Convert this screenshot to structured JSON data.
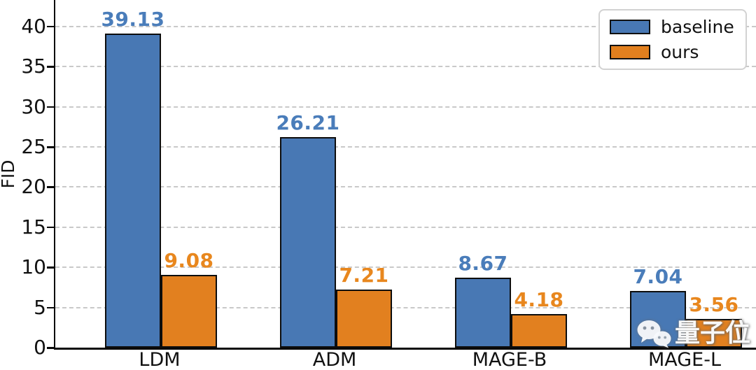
{
  "chart_data": {
    "type": "bar",
    "title": "",
    "categories": [
      "LDM",
      "ADM",
      "MAGE-B",
      "MAGE-L"
    ],
    "series": [
      {
        "name": "baseline",
        "color": "#4878b4",
        "label_color": "#4a7dba",
        "values": [
          39.13,
          26.21,
          8.67,
          7.04
        ]
      },
      {
        "name": "ours",
        "color": "#e2801f",
        "label_color": "#e8871e",
        "values": [
          9.08,
          7.21,
          4.18,
          3.56
        ]
      }
    ],
    "xlabel": "",
    "ylabel": "FID",
    "yticks": [
      0,
      5,
      10,
      15,
      20,
      25,
      30,
      35,
      40
    ],
    "ylim": [
      0,
      43.3
    ],
    "grid": "horizontal-dashed",
    "grid_color": "#c9c9c9",
    "bar_edge_color": "#0d0d0d",
    "legend_position": "upper-right",
    "value_labels_decimals": 2
  },
  "legend": {
    "items": [
      {
        "label": "baseline",
        "color": "#4878b4"
      },
      {
        "label": "ours",
        "color": "#e2801f"
      }
    ]
  },
  "watermark": {
    "icon": "wechat-icon",
    "text": "量子位"
  }
}
